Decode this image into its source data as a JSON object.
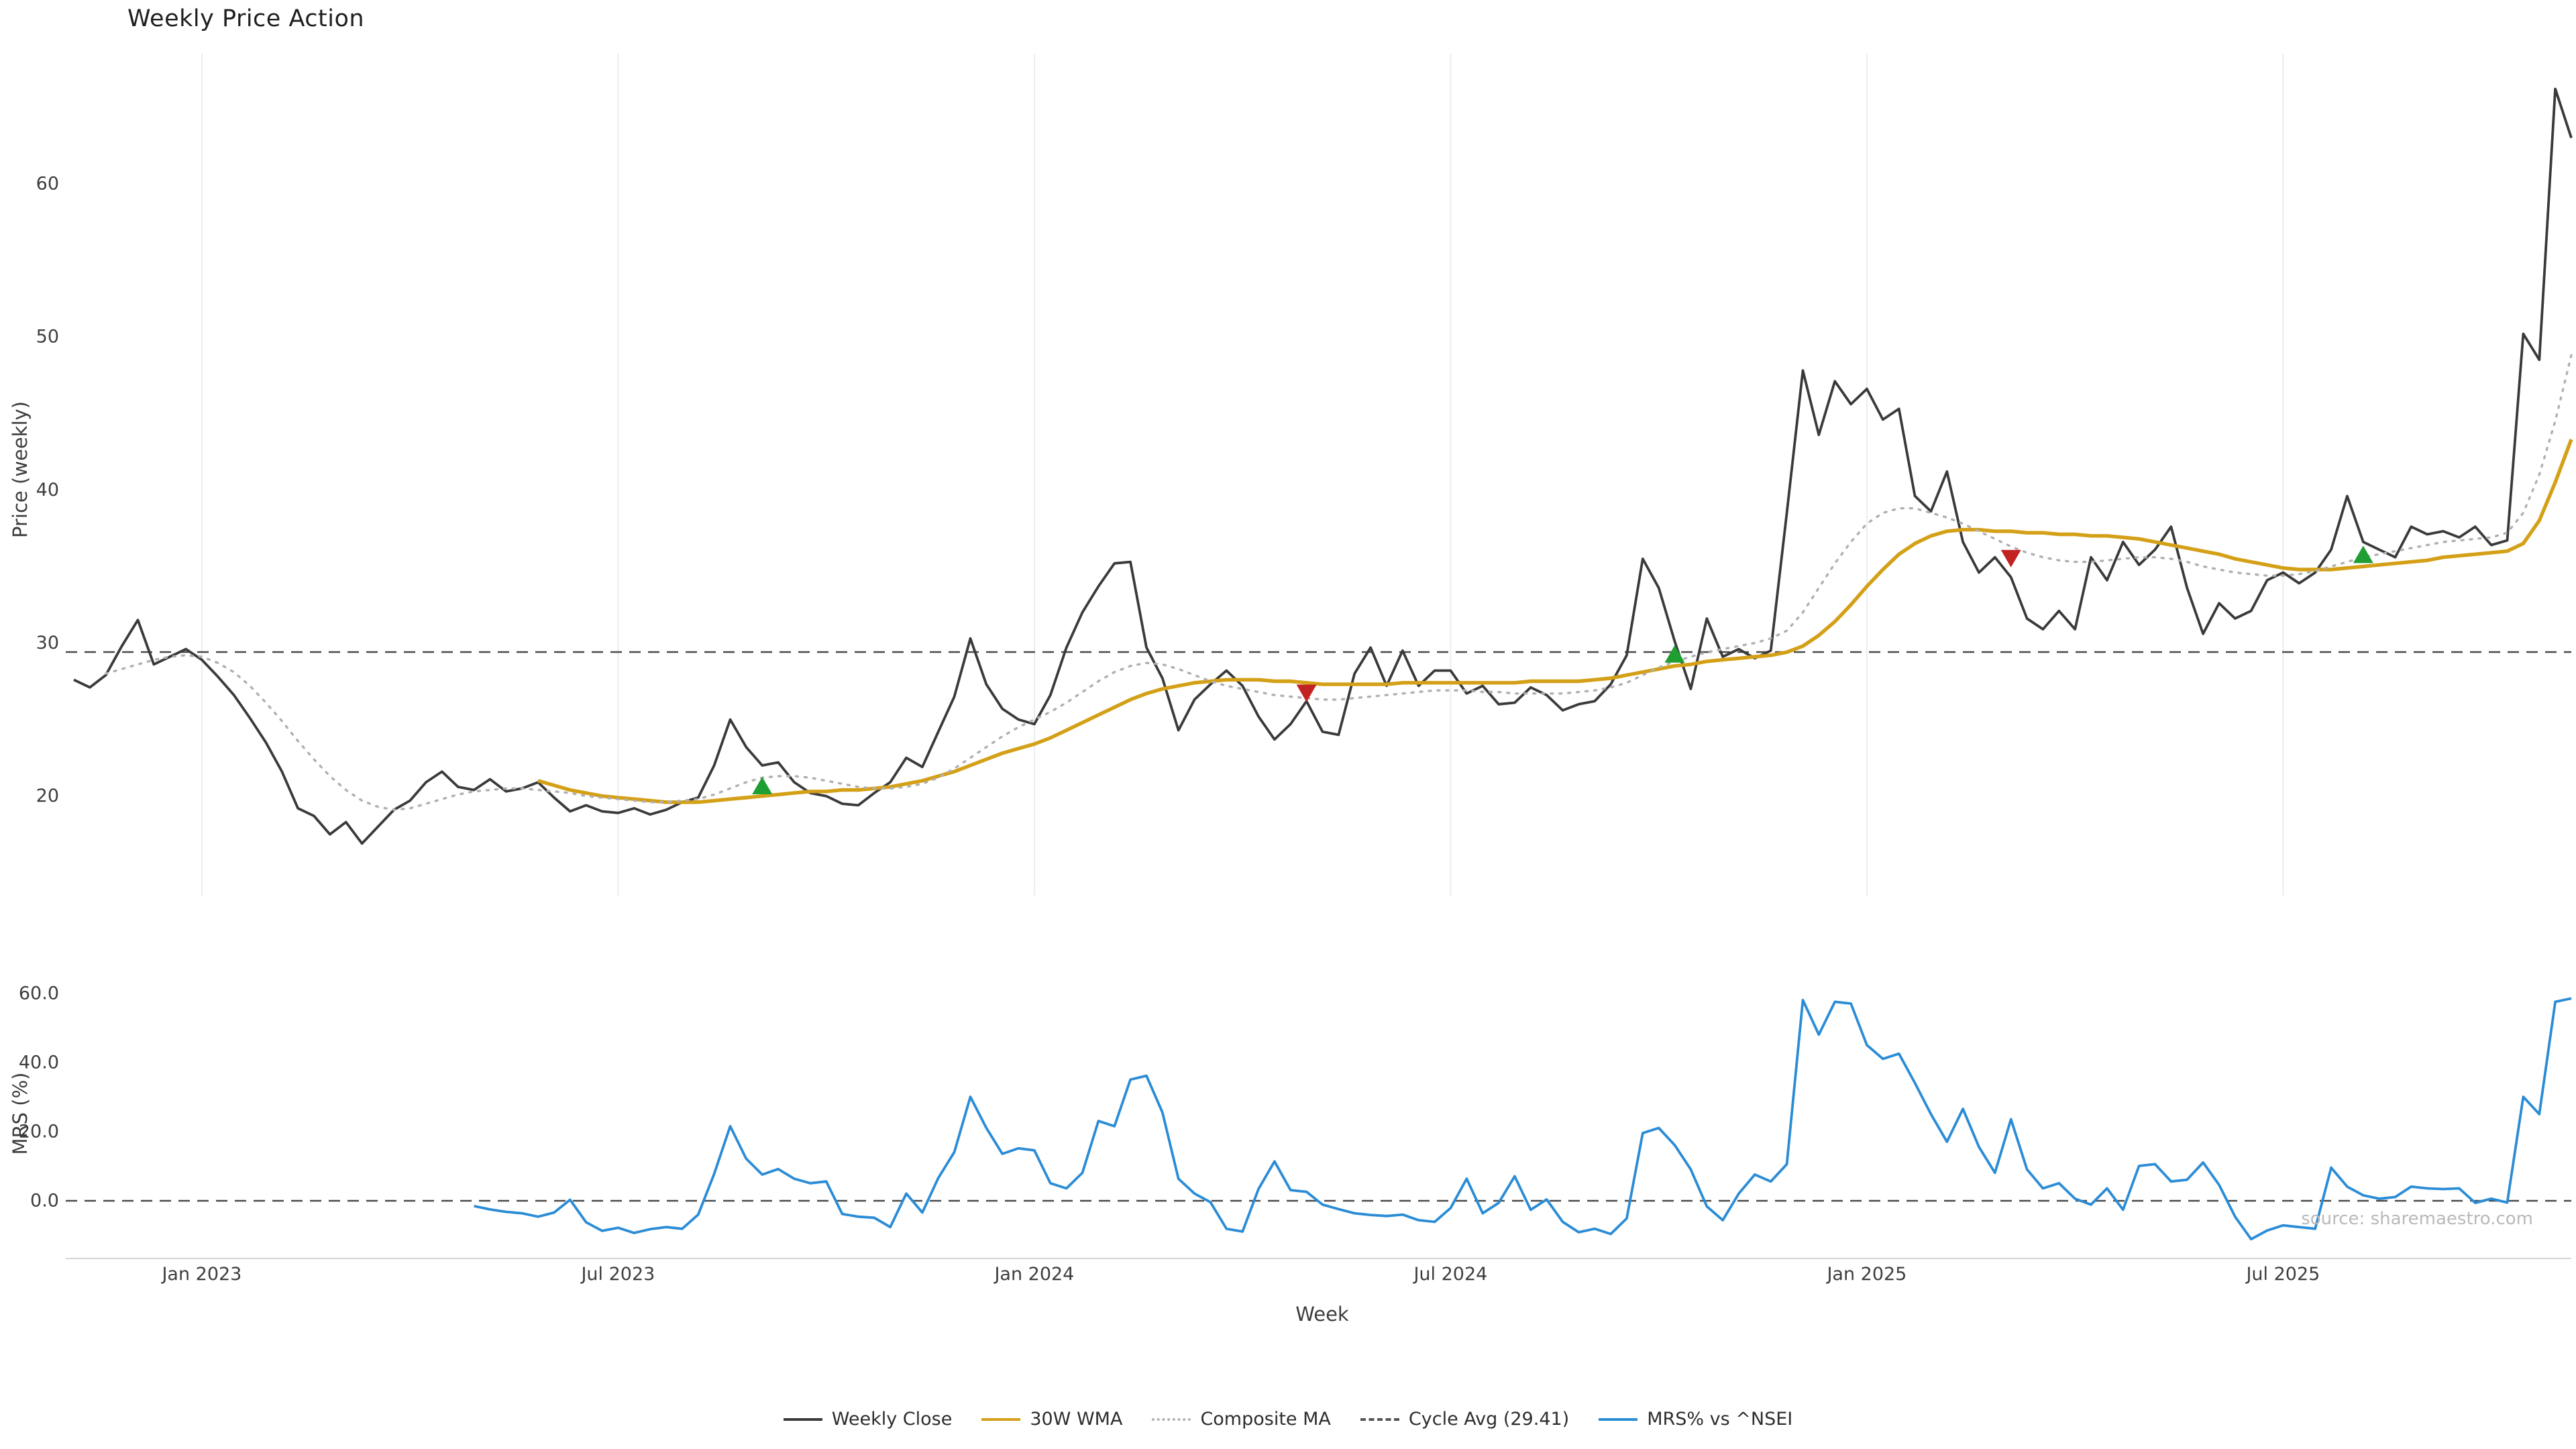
{
  "source": "source: sharemaestro.com",
  "legend": [
    {
      "label": "Weekly Close",
      "color": "#3a3a3a",
      "style": "solid"
    },
    {
      "label": "30W WMA",
      "color": "#d4a017",
      "style": "solid"
    },
    {
      "label": "Composite MA",
      "color": "#b0b0b0",
      "style": "dotted"
    },
    {
      "label": "Cycle Avg (29.41)",
      "color": "#555555",
      "style": "dashed"
    },
    {
      "label": "MRS% vs ^NSEI",
      "color": "#2b8cd6",
      "style": "solid"
    }
  ],
  "chart_data": {
    "type": "line",
    "title": "Weekly Price Action",
    "xlabel": "Week",
    "x_tick_labels": [
      "Jan 2023",
      "Jul 2023",
      "Jan 2024",
      "Jul 2024",
      "Jan 2025",
      "Jul 2025"
    ],
    "x_tick_indices": [
      8,
      34,
      60,
      86,
      112,
      138
    ],
    "panels": [
      {
        "name": "price",
        "ylabel": "Price (weekly)",
        "yticks": [
          20,
          30,
          40,
          50,
          60
        ],
        "ytick_labels": [
          "20",
          "30",
          "40",
          "50",
          "60"
        ],
        "ylim": [
          13.5,
          68.5
        ]
      },
      {
        "name": "mrs",
        "ylabel": "MRS (%)",
        "yticks": [
          0,
          20,
          40,
          60
        ],
        "ytick_labels": [
          "0.0",
          "20.0",
          "40.0",
          "60.0"
        ],
        "ylim": [
          -16.5,
          67
        ]
      }
    ],
    "reference_lines": [
      {
        "panel": "price",
        "value": 29.41,
        "label": "Cycle Avg (29.41)",
        "color": "#4a4a4a"
      },
      {
        "panel": "mrs",
        "value": 0,
        "label": "zero",
        "color": "#4a4a4a"
      }
    ],
    "signal_colors": {
      "buy": "#1f9e33",
      "sell": "#c22222"
    },
    "signals": [
      {
        "index": 43,
        "value": 20.6,
        "type": "buy"
      },
      {
        "index": 77,
        "value": 26.8,
        "type": "sell"
      },
      {
        "index": 100,
        "value": 29.2,
        "type": "buy"
      },
      {
        "index": 121,
        "value": 35.6,
        "type": "sell"
      },
      {
        "index": 143,
        "value": 35.7,
        "type": "buy"
      }
    ],
    "series": [
      {
        "name": "Weekly Close",
        "panel": "price",
        "color": "#3a3a3a",
        "style": "solid",
        "width": 3.8,
        "values": [
          27.6,
          27.1,
          27.9,
          29.8,
          31.5,
          28.6,
          29.1,
          29.6,
          28.9,
          27.8,
          26.6,
          25.1,
          23.5,
          21.6,
          19.2,
          18.7,
          17.5,
          18.3,
          16.9,
          18.0,
          19.1,
          19.7,
          20.9,
          21.6,
          20.6,
          20.4,
          21.1,
          20.3,
          20.5,
          20.9,
          19.9,
          19.0,
          19.4,
          19.0,
          18.9,
          19.2,
          18.8,
          19.1,
          19.6,
          19.9,
          22.0,
          25.0,
          23.2,
          22.0,
          22.2,
          20.9,
          20.2,
          20.0,
          19.5,
          19.4,
          20.2,
          20.9,
          22.5,
          21.9,
          24.2,
          26.5,
          30.3,
          27.3,
          25.7,
          25.0,
          24.7,
          26.6,
          29.7,
          32.0,
          33.7,
          35.2,
          35.3,
          29.7,
          27.7,
          24.3,
          26.3,
          27.3,
          28.2,
          27.2,
          25.2,
          23.7,
          24.7,
          26.2,
          24.2,
          24.0,
          28.0,
          29.7,
          27.2,
          29.5,
          27.2,
          28.2,
          28.2,
          26.7,
          27.2,
          26.0,
          26.1,
          27.1,
          26.6,
          25.6,
          26.0,
          26.2,
          27.3,
          29.2,
          35.5,
          33.6,
          30.1,
          27.0,
          31.6,
          29.1,
          29.6,
          29.0,
          29.5,
          38.5,
          47.8,
          43.6,
          47.1,
          45.6,
          46.6,
          44.6,
          45.3,
          39.6,
          38.6,
          41.2,
          36.6,
          34.6,
          35.6,
          34.3,
          31.6,
          30.9,
          32.1,
          30.9,
          35.6,
          34.1,
          36.6,
          35.1,
          36.1,
          37.6,
          33.6,
          30.6,
          32.6,
          31.6,
          32.1,
          34.1,
          34.6,
          33.9,
          34.6,
          36.1,
          39.6,
          36.6,
          36.1,
          35.6,
          37.6,
          37.1,
          37.3,
          36.9,
          37.6,
          36.4,
          36.7,
          50.2,
          48.5,
          66.2,
          63.0
        ]
      },
      {
        "name": "30W WMA",
        "panel": "price",
        "color": "#d4a017",
        "style": "solid",
        "width": 5.4,
        "values": [
          null,
          null,
          null,
          null,
          null,
          null,
          null,
          null,
          null,
          null,
          null,
          null,
          null,
          null,
          null,
          null,
          null,
          null,
          null,
          null,
          null,
          null,
          null,
          null,
          null,
          null,
          null,
          null,
          null,
          21.0,
          20.7,
          20.4,
          20.2,
          20.0,
          19.9,
          19.8,
          19.7,
          19.6,
          19.6,
          19.6,
          19.7,
          19.8,
          19.9,
          20.0,
          20.1,
          20.2,
          20.3,
          20.3,
          20.4,
          20.4,
          20.5,
          20.6,
          20.8,
          21.0,
          21.3,
          21.6,
          22.0,
          22.4,
          22.8,
          23.1,
          23.4,
          23.8,
          24.3,
          24.8,
          25.3,
          25.8,
          26.3,
          26.7,
          27.0,
          27.2,
          27.4,
          27.5,
          27.6,
          27.6,
          27.6,
          27.5,
          27.5,
          27.4,
          27.3,
          27.3,
          27.3,
          27.3,
          27.3,
          27.4,
          27.4,
          27.4,
          27.4,
          27.4,
          27.4,
          27.4,
          27.4,
          27.5,
          27.5,
          27.5,
          27.5,
          27.6,
          27.7,
          27.9,
          28.1,
          28.3,
          28.5,
          28.6,
          28.8,
          28.9,
          29.0,
          29.1,
          29.2,
          29.4,
          29.8,
          30.5,
          31.4,
          32.5,
          33.7,
          34.8,
          35.8,
          36.5,
          37.0,
          37.3,
          37.4,
          37.4,
          37.3,
          37.3,
          37.2,
          37.2,
          37.1,
          37.1,
          37.0,
          37.0,
          36.9,
          36.8,
          36.6,
          36.4,
          36.2,
          36.0,
          35.8,
          35.5,
          35.3,
          35.1,
          34.9,
          34.8,
          34.8,
          34.8,
          34.9,
          35.0,
          35.1,
          35.2,
          35.3,
          35.4,
          35.6,
          35.7,
          35.8,
          35.9,
          36.0,
          36.5,
          38.0,
          40.5,
          43.3
        ]
      },
      {
        "name": "Composite MA",
        "panel": "price",
        "color": "#b0b0b0",
        "style": "dotted",
        "width": 3.4,
        "values": [
          null,
          null,
          28.0,
          28.3,
          28.6,
          28.9,
          29.1,
          29.2,
          29.1,
          28.7,
          28.1,
          27.2,
          26.1,
          24.9,
          23.6,
          22.4,
          21.3,
          20.4,
          19.7,
          19.3,
          19.1,
          19.2,
          19.5,
          19.8,
          20.1,
          20.3,
          20.4,
          20.5,
          20.5,
          20.4,
          20.3,
          20.2,
          20.0,
          19.9,
          19.8,
          19.7,
          19.6,
          19.6,
          19.7,
          19.8,
          20.1,
          20.5,
          20.9,
          21.2,
          21.3,
          21.3,
          21.2,
          21.0,
          20.8,
          20.6,
          20.5,
          20.5,
          20.6,
          20.8,
          21.2,
          21.8,
          22.5,
          23.2,
          23.9,
          24.5,
          25.0,
          25.5,
          26.1,
          26.8,
          27.5,
          28.1,
          28.5,
          28.7,
          28.6,
          28.3,
          27.9,
          27.5,
          27.2,
          27.0,
          26.8,
          26.6,
          26.5,
          26.4,
          26.3,
          26.3,
          26.4,
          26.5,
          26.6,
          26.7,
          26.8,
          26.9,
          26.9,
          26.9,
          26.8,
          26.8,
          26.7,
          26.7,
          26.7,
          26.7,
          26.8,
          26.9,
          27.1,
          27.4,
          27.9,
          28.4,
          28.8,
          29.1,
          29.4,
          29.6,
          29.8,
          30.0,
          30.3,
          30.8,
          32.0,
          33.6,
          35.2,
          36.6,
          37.8,
          38.5,
          38.8,
          38.8,
          38.5,
          38.2,
          37.8,
          37.3,
          36.8,
          36.3,
          35.9,
          35.6,
          35.4,
          35.3,
          35.3,
          35.4,
          35.5,
          35.6,
          35.6,
          35.5,
          35.3,
          35.0,
          34.8,
          34.6,
          34.5,
          34.4,
          34.4,
          34.5,
          34.7,
          35.0,
          35.3,
          35.6,
          35.8,
          36.0,
          36.2,
          36.4,
          36.6,
          36.7,
          36.8,
          36.9,
          37.2,
          38.5,
          41.0,
          44.5,
          48.8
        ]
      },
      {
        "name": "MRS% vs ^NSEI",
        "panel": "mrs",
        "color": "#2b8cd6",
        "style": "solid",
        "width": 3.8,
        "values": [
          null,
          null,
          null,
          null,
          null,
          null,
          null,
          null,
          null,
          null,
          null,
          null,
          null,
          null,
          null,
          null,
          null,
          null,
          null,
          null,
          null,
          null,
          null,
          null,
          null,
          -1.5,
          -2.5,
          -3.2,
          -3.6,
          -4.6,
          -3.4,
          0.3,
          -6.2,
          -8.7,
          -7.8,
          -9.3,
          -8.2,
          -7.6,
          -8.1,
          -4.0,
          7.8,
          21.6,
          12.2,
          7.6,
          9.2,
          6.4,
          5.1,
          5.6,
          -3.8,
          -4.6,
          -4.9,
          -7.6,
          2.1,
          -3.4,
          6.6,
          14.1,
          30.1,
          21.1,
          13.6,
          15.2,
          14.6,
          5.1,
          3.6,
          8.1,
          23.1,
          21.6,
          35.1,
          36.2,
          25.6,
          6.4,
          2.1,
          -0.4,
          -8.1,
          -8.9,
          3.4,
          11.4,
          3.1,
          2.6,
          -1.1,
          -2.4,
          -3.6,
          -4.1,
          -4.4,
          -4.0,
          -5.6,
          -6.1,
          -2.1,
          6.4,
          -3.6,
          -0.6,
          7.1,
          -2.6,
          0.4,
          -6.1,
          -9.1,
          -8.1,
          -9.6,
          -5.1,
          19.6,
          21.1,
          16.1,
          9.1,
          -1.6,
          -5.6,
          2.1,
          7.6,
          5.6,
          10.6,
          58.1,
          48.1,
          57.6,
          57.1,
          45.1,
          41.1,
          42.6,
          34.1,
          25.1,
          17.1,
          26.6,
          15.6,
          8.1,
          23.6,
          9.1,
          3.6,
          5.1,
          0.6,
          -1.1,
          3.6,
          -2.6,
          10.1,
          10.6,
          5.6,
          6.1,
          11.1,
          4.6,
          -4.6,
          -11.1,
          -8.6,
          -7.1,
          -7.6,
          -8.1,
          9.6,
          4.1,
          1.6,
          0.6,
          1.1,
          4.1,
          3.6,
          3.4,
          3.6,
          -0.6,
          0.6,
          -0.5,
          30.1,
          25.1,
          57.6,
          58.6
        ]
      }
    ]
  }
}
